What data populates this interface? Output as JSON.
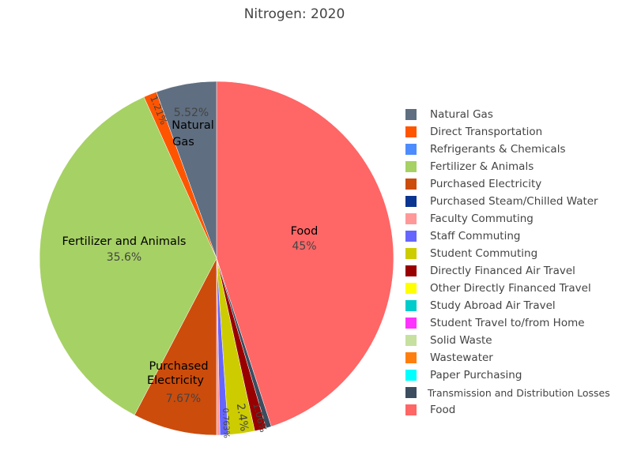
{
  "chart_data": {
    "type": "pie",
    "title": "Nitrogen: 2020",
    "direction": "clockwise",
    "legend_position": "right",
    "slices": [
      {
        "name": "Food",
        "value": 45,
        "color": "#ff6666",
        "label": "Food",
        "pct": "45%"
      },
      {
        "name": "Transmission and Distribution Losses",
        "value": 0.48,
        "color": "#3d4d60",
        "label": "",
        "pct": ""
      },
      {
        "name": "Directly Financed Air Travel",
        "value": 1.06,
        "color": "#990000",
        "label": "",
        "pct": "1.06%"
      },
      {
        "name": "Student Commuting",
        "value": 2.4,
        "color": "#cccc00",
        "label": "",
        "pct": "2.4%"
      },
      {
        "name": "Staff Commuting",
        "value": 0.763,
        "color": "#6666ff",
        "label": "",
        "pct": "0.763%"
      },
      {
        "name": "Faculty Commuting",
        "value": 0.3,
        "color": "#ff9999",
        "label": "",
        "pct": ""
      },
      {
        "name": "Purchased Electricity",
        "value": 7.67,
        "color": "#cc4c0c",
        "label": "Purchased Electricity",
        "pct": "7.67%"
      },
      {
        "name": "Fertilizer & Animals",
        "value": 35.6,
        "color": "#a6d164",
        "label": "Fertilizer and Animals",
        "pct": "35.6%"
      },
      {
        "name": "Direct Transportation",
        "value": 1.21,
        "color": "#ff5500",
        "label": "",
        "pct": "1.21%"
      },
      {
        "name": "Natural Gas",
        "value": 5.52,
        "color": "#5f6e80",
        "label": "Natural Gas",
        "pct": "5.52%"
      }
    ],
    "legend": [
      {
        "name": "Natural Gas",
        "color": "#5f6e80"
      },
      {
        "name": "Direct Transportation",
        "color": "#ff5500"
      },
      {
        "name": "Refrigerants & Chemicals",
        "color": "#4d8cff"
      },
      {
        "name": "Fertilizer & Animals",
        "color": "#a6d164"
      },
      {
        "name": "Purchased Electricity",
        "color": "#cc4c0c"
      },
      {
        "name": "Purchased Steam/Chilled Water",
        "color": "#0a3590"
      },
      {
        "name": "Faculty Commuting",
        "color": "#ff9999"
      },
      {
        "name": "Staff Commuting",
        "color": "#6666ff"
      },
      {
        "name": "Student Commuting",
        "color": "#cccc00"
      },
      {
        "name": "Directly Financed Air Travel",
        "color": "#990000"
      },
      {
        "name": "Other Directly Financed Travel",
        "color": "#ffff00"
      },
      {
        "name": "Study Abroad Air Travel",
        "color": "#00cccc"
      },
      {
        "name": "Student Travel to/from Home",
        "color": "#ff33ff"
      },
      {
        "name": "Solid Waste",
        "color": "#c6e0a0"
      },
      {
        "name": "Wastewater",
        "color": "#ff7f0e"
      },
      {
        "name": "Paper Purchasing",
        "color": "#00ffff"
      },
      {
        "name": "Transmission and Distribution Losses",
        "color": "#3d4d60"
      },
      {
        "name": "Food",
        "color": "#ff6666"
      }
    ]
  }
}
